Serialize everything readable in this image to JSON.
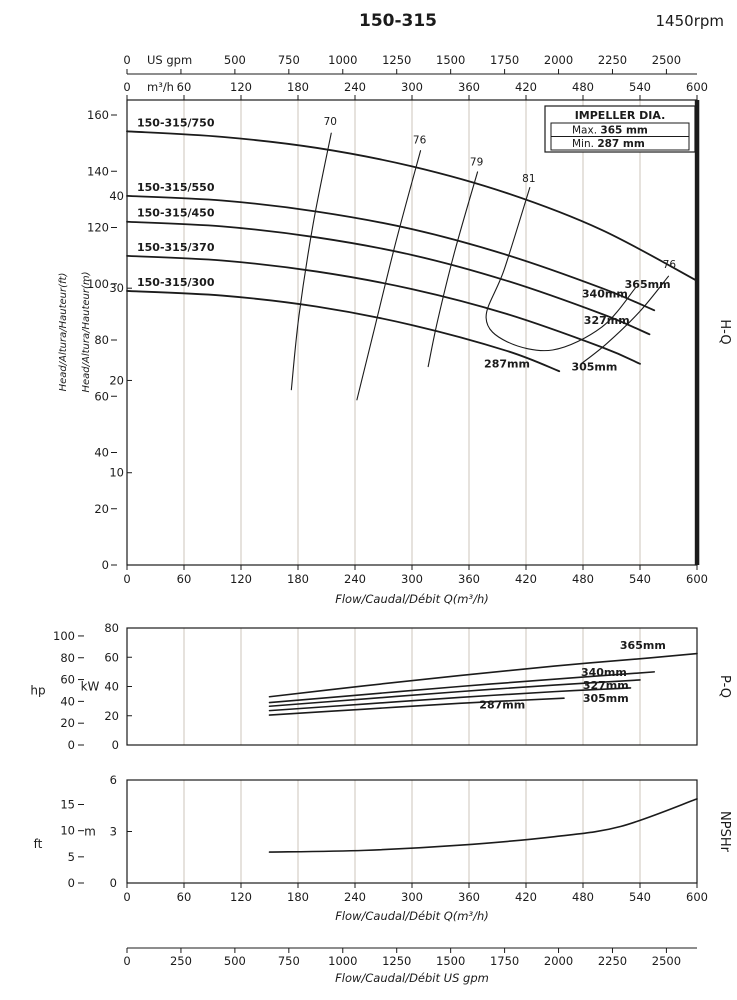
{
  "chart_data": {
    "type": "line",
    "title": "150-315",
    "subtitle": "1450rpm",
    "colors": {
      "ink": "#1b1b1b",
      "grid": "#ccc6bb"
    },
    "flow": {
      "range_m3h": [
        0,
        600
      ],
      "m3h_ticks": [
        0,
        60,
        120,
        180,
        240,
        300,
        360,
        420,
        480,
        540,
        600
      ],
      "m3h_unit": "m³/h",
      "m3h_axis_label": "Flow/Caudal/Débit Q(m³/h)",
      "usgpm_unit": "US gpm",
      "usgpm_top_ticks": [
        0,
        500,
        750,
        1000,
        1250,
        1500,
        1750,
        2000,
        2250,
        2500
      ],
      "usgpm_bottom_ticks": [
        0,
        250,
        500,
        750,
        1000,
        1250,
        1500,
        1750,
        2000,
        2250,
        2500
      ],
      "usgpm_axis_label": "Flow/Caudal/Débit  US gpm",
      "gpm_per_m3h": 4.4029
    },
    "hq_panel": {
      "side_label": "H-Q",
      "ft_axis": {
        "label": "Head/Altura/Hauteur(ft)",
        "ticks": [
          0,
          20,
          40,
          60,
          80,
          100,
          120,
          140,
          160
        ],
        "range": [
          0,
          165
        ]
      },
      "m_axis": {
        "label": "Head/Altura/Hauteur(m)",
        "ticks": [
          10,
          20,
          30,
          40
        ]
      },
      "legend": {
        "title": "IMPELLER DIA.",
        "rows": [
          [
            "Max.",
            "365 mm"
          ],
          [
            "Min.",
            "287 mm"
          ]
        ]
      },
      "curves": [
        {
          "model": "150-315/750",
          "impeller": "365mm",
          "points_m3h_m": [
            [
              0,
              47
            ],
            [
              100,
              46.4
            ],
            [
              200,
              45.2
            ],
            [
              300,
              43.2
            ],
            [
              400,
              40.3
            ],
            [
              500,
              36.3
            ],
            [
              600,
              30.8
            ]
          ],
          "impeller_label_at": [
            548,
            30
          ]
        },
        {
          "model": "150-315/550",
          "impeller": "340mm",
          "points_m3h_m": [
            [
              0,
              40
            ],
            [
              100,
              39.5
            ],
            [
              200,
              38.3
            ],
            [
              300,
              36.4
            ],
            [
              400,
              33.6
            ],
            [
              500,
              30
            ],
            [
              555,
              27.6
            ]
          ],
          "impeller_label_at": [
            503,
            29.0
          ]
        },
        {
          "model": "150-315/450",
          "impeller": "327mm",
          "points_m3h_m": [
            [
              0,
              37.2
            ],
            [
              100,
              36.7
            ],
            [
              200,
              35.5
            ],
            [
              300,
              33.6
            ],
            [
              400,
              30.8
            ],
            [
              500,
              27.2
            ],
            [
              550,
              25
            ]
          ],
          "impeller_label_at": [
            505,
            26.1
          ]
        },
        {
          "model": "150-315/370",
          "impeller": "305mm",
          "points_m3h_m": [
            [
              0,
              33.5
            ],
            [
              100,
              33
            ],
            [
              200,
              31.8
            ],
            [
              300,
              29.9
            ],
            [
              400,
              27.2
            ],
            [
              500,
              23.6
            ],
            [
              540,
              21.8
            ]
          ],
          "impeller_label_at": [
            492,
            21.1
          ]
        },
        {
          "model": "150-315/300",
          "impeller": "287mm",
          "points_m3h_m": [
            [
              0,
              29.7
            ],
            [
              100,
              29.2
            ],
            [
              200,
              28
            ],
            [
              300,
              26
            ],
            [
              400,
              23.2
            ],
            [
              455,
              21
            ]
          ],
          "impeller_label_at": [
            400,
            21.4
          ]
        }
      ],
      "efficiency_contours": [
        {
          "label": "70",
          "label_at": [
            214,
            47.7
          ],
          "points_m3h_m": [
            [
              215,
              46.8
            ],
            [
              196,
              37
            ],
            [
              181,
              27
            ],
            [
              173,
              19
            ]
          ]
        },
        {
          "label": "76",
          "label_at": [
            308,
            45.7
          ],
          "points_m3h_m": [
            [
              309,
              44.9
            ],
            [
              283,
              35
            ],
            [
              259,
              25
            ],
            [
              242,
              17.9
            ]
          ]
        },
        {
          "label": "79",
          "label_at": [
            368,
            43.3
          ],
          "points_m3h_m": [
            [
              369,
              42.6
            ],
            [
              345,
              34
            ],
            [
              327,
              26.5
            ],
            [
              317,
              21.5
            ]
          ]
        },
        {
          "label": "81",
          "label_at": [
            423,
            41.5
          ],
          "points_m3h_m": [
            [
              424,
              40.9
            ],
            [
              397,
              32
            ],
            [
              378,
              26.8
            ],
            [
              400,
              24.2
            ],
            [
              448,
              23.3
            ],
            [
              500,
              25.8
            ],
            [
              535,
              30
            ]
          ]
        },
        {
          "label": "76",
          "label_at": [
            571,
            32.2
          ],
          "points_m3h_m": [
            [
              570,
              31.3
            ],
            [
              540,
              27.5
            ],
            [
              505,
              24
            ],
            [
              478,
              21.8
            ]
          ]
        }
      ]
    },
    "pq_panel": {
      "side_label": "P-Q",
      "hp_axis": {
        "label": "hp",
        "ticks": [
          0,
          20,
          40,
          60,
          80,
          100
        ]
      },
      "kw_axis": {
        "label": "kW",
        "ticks": [
          0,
          20,
          40,
          60,
          80
        ],
        "range": [
          0,
          80
        ]
      },
      "curves": [
        {
          "impeller": "365mm",
          "points_m3h_kw": [
            [
              150,
              33
            ],
            [
              250,
              40.5
            ],
            [
              350,
              47.5
            ],
            [
              450,
              54
            ],
            [
              550,
              59.5
            ],
            [
              600,
              62.5
            ]
          ],
          "label_at": [
            543,
            65.6
          ]
        },
        {
          "impeller": "340mm",
          "points_m3h_kw": [
            [
              150,
              29
            ],
            [
              250,
              34.5
            ],
            [
              350,
              40
            ],
            [
              450,
              45
            ],
            [
              555,
              50
            ]
          ],
          "label_at": [
            502,
            47.2
          ]
        },
        {
          "impeller": "327mm",
          "points_m3h_kw": [
            [
              150,
              26.5
            ],
            [
              250,
              31.5
            ],
            [
              350,
              36.5
            ],
            [
              450,
              41
            ],
            [
              540,
              44.5
            ]
          ],
          "label_at": [
            504,
            38.3
          ]
        },
        {
          "impeller": "305mm",
          "points_m3h_kw": [
            [
              150,
              23.5
            ],
            [
              250,
              28
            ],
            [
              350,
              32.5
            ],
            [
              450,
              36.5
            ],
            [
              530,
              39
            ]
          ],
          "label_at": [
            504,
            29.4
          ]
        },
        {
          "impeller": "287mm",
          "points_m3h_kw": [
            [
              150,
              20.5
            ],
            [
              250,
              24.5
            ],
            [
              350,
              28.5
            ],
            [
              460,
              32
            ]
          ],
          "label_at": [
            395,
            24.8
          ]
        }
      ]
    },
    "npsh_panel": {
      "side_label": "NPSHr",
      "ft_axis": {
        "label": "ft",
        "ticks": [
          0,
          5,
          10,
          15
        ]
      },
      "m_axis": {
        "label": "m",
        "ticks": [
          0,
          3,
          6
        ],
        "range": [
          0,
          6
        ]
      },
      "curve": {
        "points_m3h_m": [
          [
            150,
            1.8
          ],
          [
            250,
            1.9
          ],
          [
            350,
            2.2
          ],
          [
            450,
            2.7
          ],
          [
            520,
            3.3
          ],
          [
            600,
            4.9
          ]
        ]
      }
    }
  }
}
